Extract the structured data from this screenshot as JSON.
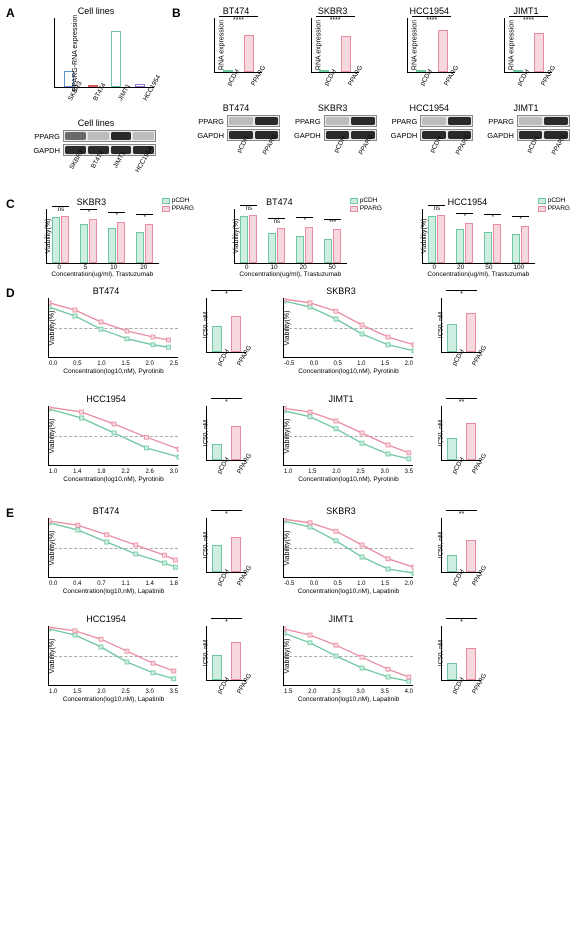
{
  "colors": {
    "green": "#6fc7a0",
    "green_fill": "#cdeee0",
    "pink": "#e98ca0",
    "pink_fill": "#f8d8df",
    "blue": "#5b8fd6",
    "red": "#d95b5b",
    "purple": "#9a72c9",
    "band_dark": "#2a2a2a",
    "band_med": "#6a6a6a",
    "band_light": "#bcbcbc",
    "axis": "#000000",
    "dashed": "#bbbbbb"
  },
  "A": {
    "title": "Cell lines",
    "ylabel": "PPARG-RNA expression",
    "yticks": [
      "0.0002",
      "0.0004",
      "0.005",
      "0.010",
      "0.02",
      "0.04",
      "0.06",
      "0.08"
    ],
    "lines": [
      "SKBR3",
      "BT474",
      "JIMT1",
      "HCC1954"
    ],
    "bars": [
      {
        "label": "SKBR3",
        "h": 0.25,
        "color_key": "blue"
      },
      {
        "label": "BT474",
        "h": 0.02,
        "color_key": "red"
      },
      {
        "label": "JIMT1",
        "h": 0.85,
        "color_key": "green"
      },
      {
        "label": "HCC1954",
        "h": 0.05,
        "color_key": "purple"
      }
    ],
    "blot": {
      "title": "Cell lines",
      "rows": [
        "PPARG",
        "GAPDH"
      ],
      "lanes": [
        "SKBR3",
        "BT474",
        "JIMT1",
        "HCC1954"
      ],
      "bands": [
        [
          "band_med",
          "band_light",
          "band_dark",
          "band_light"
        ],
        [
          "band_dark",
          "band_dark",
          "band_dark",
          "band_dark"
        ]
      ]
    }
  },
  "B": {
    "charts": [
      {
        "name": "BT474",
        "vals": [
          2,
          75
        ],
        "ymax": 100,
        "sig": "****"
      },
      {
        "name": "SKBR3",
        "vals": [
          2,
          58
        ],
        "ymax": 80,
        "sig": "****"
      },
      {
        "name": "HCC1954",
        "vals": [
          1,
          34
        ],
        "ymax": 40,
        "sig": "****"
      },
      {
        "name": "JIMT1",
        "vals": [
          1,
          31
        ],
        "ymax": 40,
        "sig": "****"
      }
    ],
    "ylabel": "RNA expression",
    "xlabels": [
      "pCDH",
      "PPARG"
    ],
    "blots": [
      {
        "name": "BT474",
        "bands": [
          [
            "band_light",
            "band_dark"
          ],
          [
            "band_dark",
            "band_dark"
          ]
        ]
      },
      {
        "name": "SKBR3",
        "bands": [
          [
            "band_light",
            "band_dark"
          ],
          [
            "band_dark",
            "band_dark"
          ]
        ]
      },
      {
        "name": "HCC1954",
        "bands": [
          [
            "band_light",
            "band_dark"
          ],
          [
            "band_dark",
            "band_dark"
          ]
        ]
      },
      {
        "name": "JIMT1",
        "bands": [
          [
            "band_light",
            "band_dark"
          ],
          [
            "band_dark",
            "band_dark"
          ]
        ]
      }
    ],
    "blot_rows": [
      "PPARG",
      "GAPDH"
    ]
  },
  "C": {
    "legend": [
      "pCDH",
      "PPARG"
    ],
    "charts": [
      {
        "name": "SKBR3",
        "xticks": [
          "0",
          "5",
          "10",
          "20"
        ],
        "xlab_suffix": "Concentration(ug/ml), Trastuzumab",
        "groups": [
          [
            92,
            95
          ],
          [
            78,
            88
          ],
          [
            70,
            82
          ],
          [
            62,
            78
          ]
        ],
        "ymax": 100,
        "sigs": [
          "ns",
          "*",
          "*",
          "*"
        ]
      },
      {
        "name": "BT474",
        "xticks": [
          "0",
          "10",
          "20",
          "50"
        ],
        "xlab_suffix": "Concentration(ug/ml), Trastuzumab",
        "groups": [
          [
            95,
            97
          ],
          [
            60,
            70
          ],
          [
            55,
            72
          ],
          [
            48,
            68
          ]
        ],
        "ymax": 100,
        "sigs": [
          "ns",
          "ns",
          "*",
          "***"
        ]
      },
      {
        "name": "HCC1954",
        "xticks": [
          "0",
          "20",
          "50",
          "100"
        ],
        "xlab_suffix": "Concentration(ug/ml), Trastuzumab",
        "groups": [
          [
            95,
            97
          ],
          [
            68,
            80
          ],
          [
            62,
            78
          ],
          [
            58,
            75
          ]
        ],
        "ymax": 100,
        "sigs": [
          "ns",
          "*",
          "*",
          "*"
        ]
      }
    ],
    "ylabel": "Viability(%)"
  },
  "D": {
    "drug": "Pyrotinib",
    "charts": [
      {
        "name": "BT474",
        "xlim": [
          0.0,
          2.5
        ],
        "ic50": [
          4.2,
          5.8
        ],
        "ic50_max": 8,
        "sig": "*",
        "curve_g": [
          [
            0.0,
            85
          ],
          [
            0.5,
            70
          ],
          [
            1.0,
            48
          ],
          [
            1.5,
            32
          ],
          [
            2.0,
            22
          ],
          [
            2.3,
            18
          ]
        ],
        "curve_p": [
          [
            0.0,
            92
          ],
          [
            0.5,
            80
          ],
          [
            1.0,
            60
          ],
          [
            1.5,
            45
          ],
          [
            2.0,
            35
          ],
          [
            2.3,
            30
          ]
        ]
      },
      {
        "name": "SKBR3",
        "xlim": [
          -0.5,
          2.0
        ],
        "ic50": [
          4.5,
          6.2
        ],
        "ic50_max": 8,
        "sig": "*",
        "curve_g": [
          [
            -0.5,
            95
          ],
          [
            0.0,
            85
          ],
          [
            0.5,
            65
          ],
          [
            1.0,
            40
          ],
          [
            1.5,
            22
          ],
          [
            2.0,
            12
          ]
        ],
        "curve_p": [
          [
            -0.5,
            98
          ],
          [
            0.0,
            92
          ],
          [
            0.5,
            78
          ],
          [
            1.0,
            55
          ],
          [
            1.5,
            35
          ],
          [
            2.0,
            22
          ]
        ]
      },
      {
        "name": "HCC1954",
        "xlim": [
          1.0,
          3.0
        ],
        "ic50": [
          80,
          170
        ],
        "ic50_max": 250,
        "sig": "*",
        "curve_g": [
          [
            1.0,
            95
          ],
          [
            1.5,
            80
          ],
          [
            2.0,
            55
          ],
          [
            2.5,
            30
          ],
          [
            3.0,
            15
          ]
        ],
        "curve_p": [
          [
            1.0,
            98
          ],
          [
            1.5,
            90
          ],
          [
            2.0,
            70
          ],
          [
            2.5,
            48
          ],
          [
            3.0,
            28
          ]
        ]
      },
      {
        "name": "JIMT1",
        "xlim": [
          1.0,
          3.5
        ],
        "ic50": [
          110,
          185
        ],
        "ic50_max": 250,
        "sig": "**",
        "curve_g": [
          [
            1.0,
            92
          ],
          [
            1.5,
            82
          ],
          [
            2.0,
            62
          ],
          [
            2.5,
            38
          ],
          [
            3.0,
            20
          ],
          [
            3.4,
            12
          ]
        ],
        "curve_p": [
          [
            1.0,
            96
          ],
          [
            1.5,
            90
          ],
          [
            2.0,
            75
          ],
          [
            2.5,
            55
          ],
          [
            3.0,
            35
          ],
          [
            3.4,
            22
          ]
        ]
      }
    ],
    "ylabel": "Viability(%)",
    "ic50_label": "IC50, nM",
    "xlabels": [
      "pCDH",
      "PPARG"
    ]
  },
  "E": {
    "drug": "Lapatinib",
    "charts": [
      {
        "name": "BT474",
        "xlim": [
          0.0,
          1.8
        ],
        "ic50": [
          11,
          14
        ],
        "ic50_max": 20,
        "sig": "*",
        "curve_g": [
          [
            0.0,
            92
          ],
          [
            0.4,
            80
          ],
          [
            0.8,
            60
          ],
          [
            1.2,
            40
          ],
          [
            1.6,
            25
          ],
          [
            1.75,
            18
          ]
        ],
        "curve_p": [
          [
            0.0,
            95
          ],
          [
            0.4,
            88
          ],
          [
            0.8,
            72
          ],
          [
            1.2,
            55
          ],
          [
            1.6,
            38
          ],
          [
            1.75,
            30
          ]
        ]
      },
      {
        "name": "SKBR3",
        "xlim": [
          -0.5,
          2.0
        ],
        "ic50": [
          7,
          13
        ],
        "ic50_max": 20,
        "sig": "**",
        "curve_g": [
          [
            -0.5,
            95
          ],
          [
            0.0,
            85
          ],
          [
            0.5,
            62
          ],
          [
            1.0,
            35
          ],
          [
            1.5,
            15
          ],
          [
            2.0,
            8
          ]
        ],
        "curve_p": [
          [
            -0.5,
            98
          ],
          [
            0.0,
            92
          ],
          [
            0.5,
            78
          ],
          [
            1.0,
            55
          ],
          [
            1.5,
            32
          ],
          [
            2.0,
            18
          ]
        ]
      },
      {
        "name": "HCC1954",
        "xlim": [
          1.0,
          3.5
        ],
        "ic50": [
          250,
          380
        ],
        "ic50_max": 500,
        "sig": "*",
        "curve_g": [
          [
            1.0,
            95
          ],
          [
            1.5,
            85
          ],
          [
            2.0,
            65
          ],
          [
            2.5,
            40
          ],
          [
            3.0,
            22
          ],
          [
            3.4,
            12
          ]
        ],
        "curve_p": [
          [
            1.0,
            98
          ],
          [
            1.5,
            92
          ],
          [
            2.0,
            78
          ],
          [
            2.5,
            58
          ],
          [
            3.0,
            38
          ],
          [
            3.4,
            25
          ]
        ]
      },
      {
        "name": "JIMT1",
        "xlim": [
          1.5,
          4.0
        ],
        "ic50": [
          100,
          195
        ],
        "ic50_max": 300,
        "sig": "*",
        "curve_g": [
          [
            1.5,
            88
          ],
          [
            2.0,
            72
          ],
          [
            2.5,
            50
          ],
          [
            3.0,
            30
          ],
          [
            3.5,
            15
          ],
          [
            3.9,
            8
          ]
        ],
        "curve_p": [
          [
            1.5,
            95
          ],
          [
            2.0,
            85
          ],
          [
            2.5,
            68
          ],
          [
            3.0,
            48
          ],
          [
            3.5,
            28
          ],
          [
            3.9,
            15
          ]
        ]
      }
    ],
    "ylabel": "Viability(%)",
    "ic50_label": "IC50, nM",
    "xlabels": [
      "pCDH",
      "PPARG"
    ]
  }
}
